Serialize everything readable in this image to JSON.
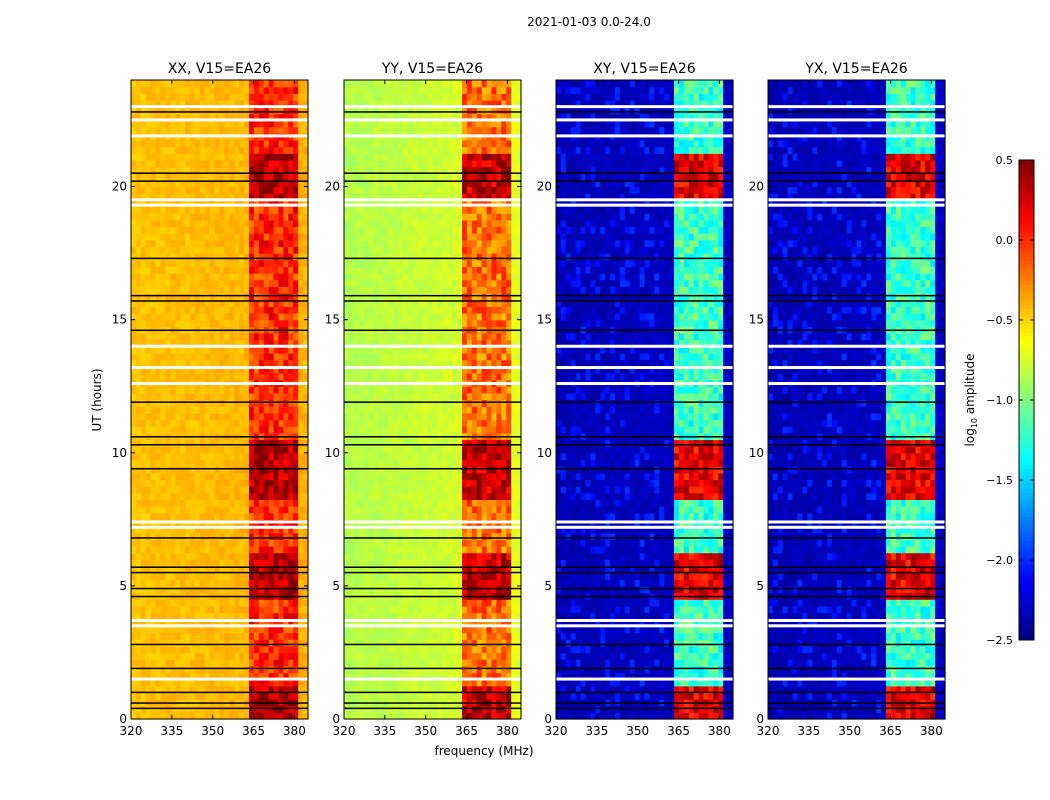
{
  "chart_data": {
    "type": "heatmap",
    "suptitle": "2021-01-03 0.0-24.0",
    "xlabel": "frequency (MHz)",
    "ylabel": "UT (hours)",
    "xlim": [
      320,
      385
    ],
    "ylim": [
      0,
      24
    ],
    "xticks": [
      320,
      335,
      350,
      365,
      380
    ],
    "xtick_labels": [
      "320",
      "335",
      "350",
      "365",
      "380"
    ],
    "yticks": [
      0,
      5,
      10,
      15,
      20
    ],
    "ytick_labels": [
      "0",
      "5",
      "10",
      "15",
      "20"
    ],
    "colorbar": {
      "label": "log10 amplitude",
      "label_main": "log",
      "label_sub": "10",
      "label_rest": " amplitude",
      "colormap": "jet",
      "range": [
        -2.5,
        0.5
      ],
      "ticks": [
        0.5,
        0.0,
        -0.5,
        -1.0,
        -1.5,
        -2.0,
        -2.5
      ],
      "tick_labels": [
        "0.5",
        "0.0",
        "−0.5",
        "−1.0",
        "−1.5",
        "−2.0",
        "−2.5"
      ]
    },
    "rfi_band_mhz": [
      363,
      382
    ],
    "rfi_subbands_mhz": [
      [
        363,
        367
      ],
      [
        367.5,
        371.5
      ],
      [
        372,
        376
      ],
      [
        376.5,
        380.5
      ]
    ],
    "flagged_white_hours": [
      23.0,
      22.5,
      21.9,
      19.5,
      19.3,
      14.0,
      13.2,
      12.6,
      7.4,
      7.2,
      3.7,
      3.5,
      1.5
    ],
    "black_line_hours": [
      22.8,
      20.5,
      20.2,
      17.3,
      15.9,
      15.7,
      14.6,
      11.9,
      10.6,
      10.3,
      9.4,
      6.8,
      5.7,
      5.5,
      4.9,
      4.6,
      2.8,
      1.9,
      1.0,
      0.6,
      0.4
    ],
    "strong_rfi_hours": [
      [
        0.0,
        1.3
      ],
      [
        4.5,
        6.2
      ],
      [
        8.2,
        10.4
      ],
      [
        19.6,
        21.2
      ]
    ],
    "panels": [
      {
        "title": "XX, V15=EA26",
        "base_low": -0.45,
        "base_high": -0.4,
        "rfi_level": 0.0,
        "strong_level": 0.35
      },
      {
        "title": "YY, V15=EA26",
        "base_low": -0.85,
        "base_high": -0.7,
        "rfi_level": -0.2,
        "strong_level": 0.3
      },
      {
        "title": "XY, V15=EA26",
        "base_low": -2.35,
        "base_high": -2.3,
        "rfi_level": -1.2,
        "strong_level": 0.2
      },
      {
        "title": "YX, V15=EA26",
        "base_low": -2.35,
        "base_high": -2.3,
        "rfi_level": -1.2,
        "strong_level": 0.2
      }
    ]
  }
}
